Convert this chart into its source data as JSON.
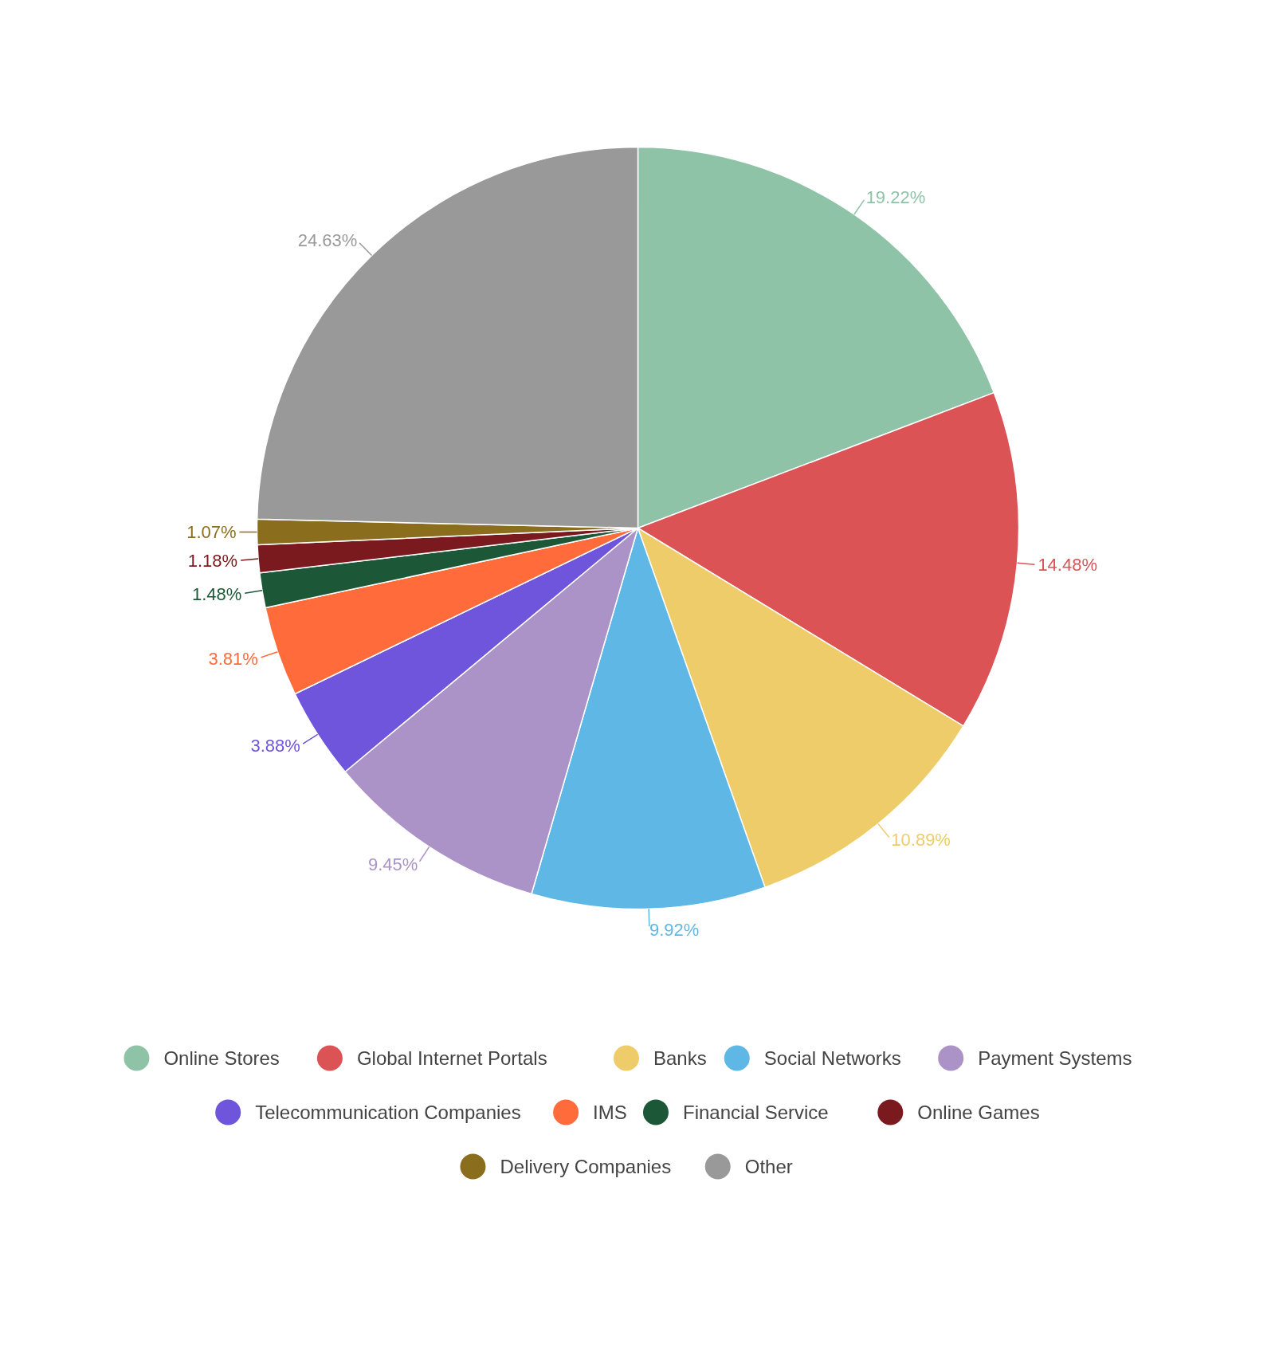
{
  "chart_data": {
    "type": "pie",
    "categories": [
      "Online Stores",
      "Global Internet Portals",
      "Banks",
      "Social Networks",
      "Payment Systems",
      "Telecommunication Companies",
      "IMS",
      "Financial Service",
      "Online Games",
      "Delivery Companies",
      "Other"
    ],
    "values": [
      19.22,
      14.48,
      10.89,
      9.92,
      9.45,
      3.88,
      3.81,
      1.48,
      1.18,
      1.07,
      24.63
    ],
    "value_labels": [
      "19.22%",
      "14.48%",
      "10.89%",
      "9.92%",
      "9.45%",
      "3.88%",
      "3.81%",
      "1.48%",
      "1.18%",
      "1.07%",
      "24.63%"
    ],
    "colors": [
      "#8fc3a7",
      "#dc5356",
      "#efcc6a",
      "#5fb7e5",
      "#ab92c7",
      "#6e55dc",
      "#ff6b3b",
      "#1c5837",
      "#7b1a1e",
      "#8b6d1e",
      "#999999"
    ],
    "legend": "bottom"
  }
}
